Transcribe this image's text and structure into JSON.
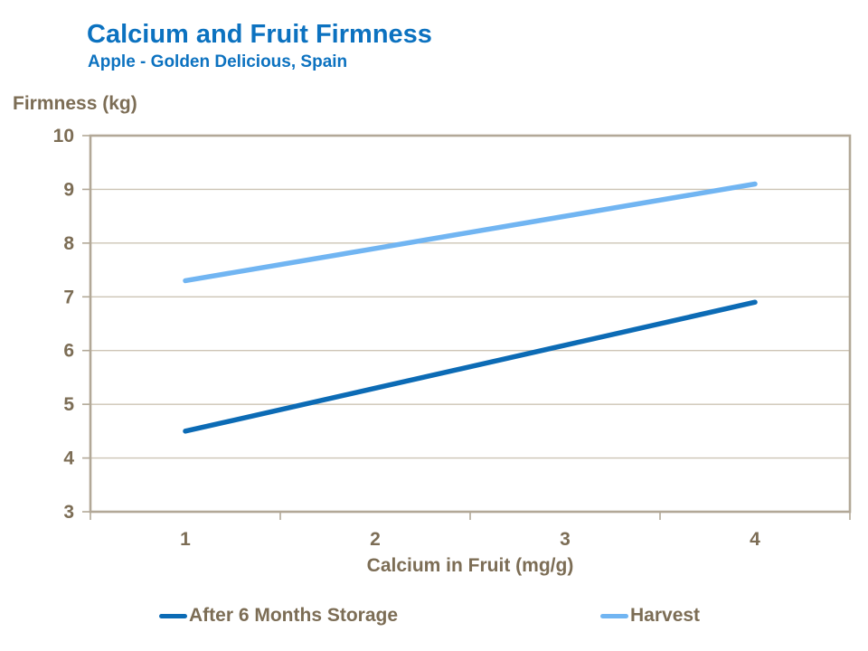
{
  "chart_data": {
    "type": "line",
    "title": "Calcium and Fruit Firmness",
    "subtitle": "Apple - Golden Delicious, Spain",
    "ylabel": "Firmness (kg)",
    "xlabel": "Calcium in Fruit (mg/g)",
    "categories": [
      1,
      2,
      3,
      4
    ],
    "series": [
      {
        "name": "After 6 Months Storage",
        "values": [
          4.5,
          5.3,
          6.1,
          6.9
        ],
        "color": "#0C6BB5"
      },
      {
        "name": "Harvest",
        "values": [
          7.3,
          7.9,
          8.5,
          9.1
        ],
        "color": "#71B5F2"
      }
    ],
    "ylim": [
      3,
      10
    ],
    "ytick_step": 1,
    "yticks": [
      3,
      4,
      5,
      6,
      7,
      8,
      9,
      10
    ],
    "grid": true,
    "legend_position": "bottom"
  },
  "colors": {
    "title_blue": "#0C72C0",
    "axis_text_tan": "#7C6D55",
    "gridline": "#CDC4B5",
    "plot_border": "#B2A897",
    "series_storage": "#0C6BB5",
    "series_harvest": "#71B5F2",
    "background": "#FFFFFF"
  }
}
